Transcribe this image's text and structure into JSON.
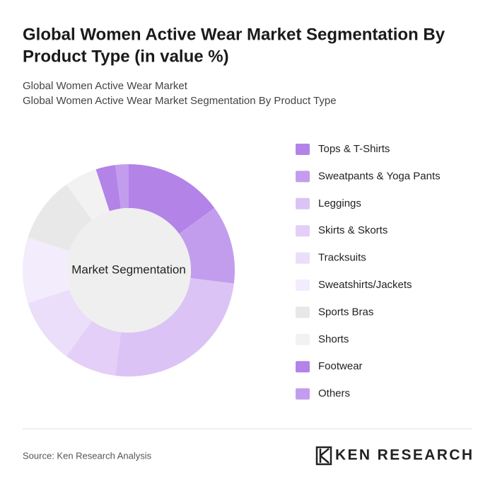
{
  "chart_data": {
    "type": "donut",
    "title": [
      "Global Women Active Wear Market Segmentation By",
      "Product Type (in value %)"
    ],
    "subtitle": [
      "Global Women Active Wear Market",
      "Global Women Active Wear Market Segmentation By Product Type"
    ],
    "center_label": "Market Segmentation",
    "categories": [
      "Tops & T-Shirts",
      "Sweatpants & Yoga Pants",
      "Leggings",
      "Skirts & Skorts",
      "Tracksuits",
      "Sweatshirts/Jackets",
      "Sports Bras",
      "Shorts",
      "Footwear",
      "Others"
    ],
    "values": [
      15,
      12,
      25,
      8,
      10,
      10,
      10,
      5,
      3,
      2
    ],
    "colors": [
      "#b383e8",
      "#c39ded",
      "#dcc3f6",
      "#e3cff7",
      "#ebdefa",
      "#f3ecfc",
      "#e8e8e8",
      "#f2f2f2",
      "#b383e8",
      "#c39ded"
    ],
    "source": "Source: Ken Research Analysis",
    "logo": "KEN RESEARCH"
  }
}
